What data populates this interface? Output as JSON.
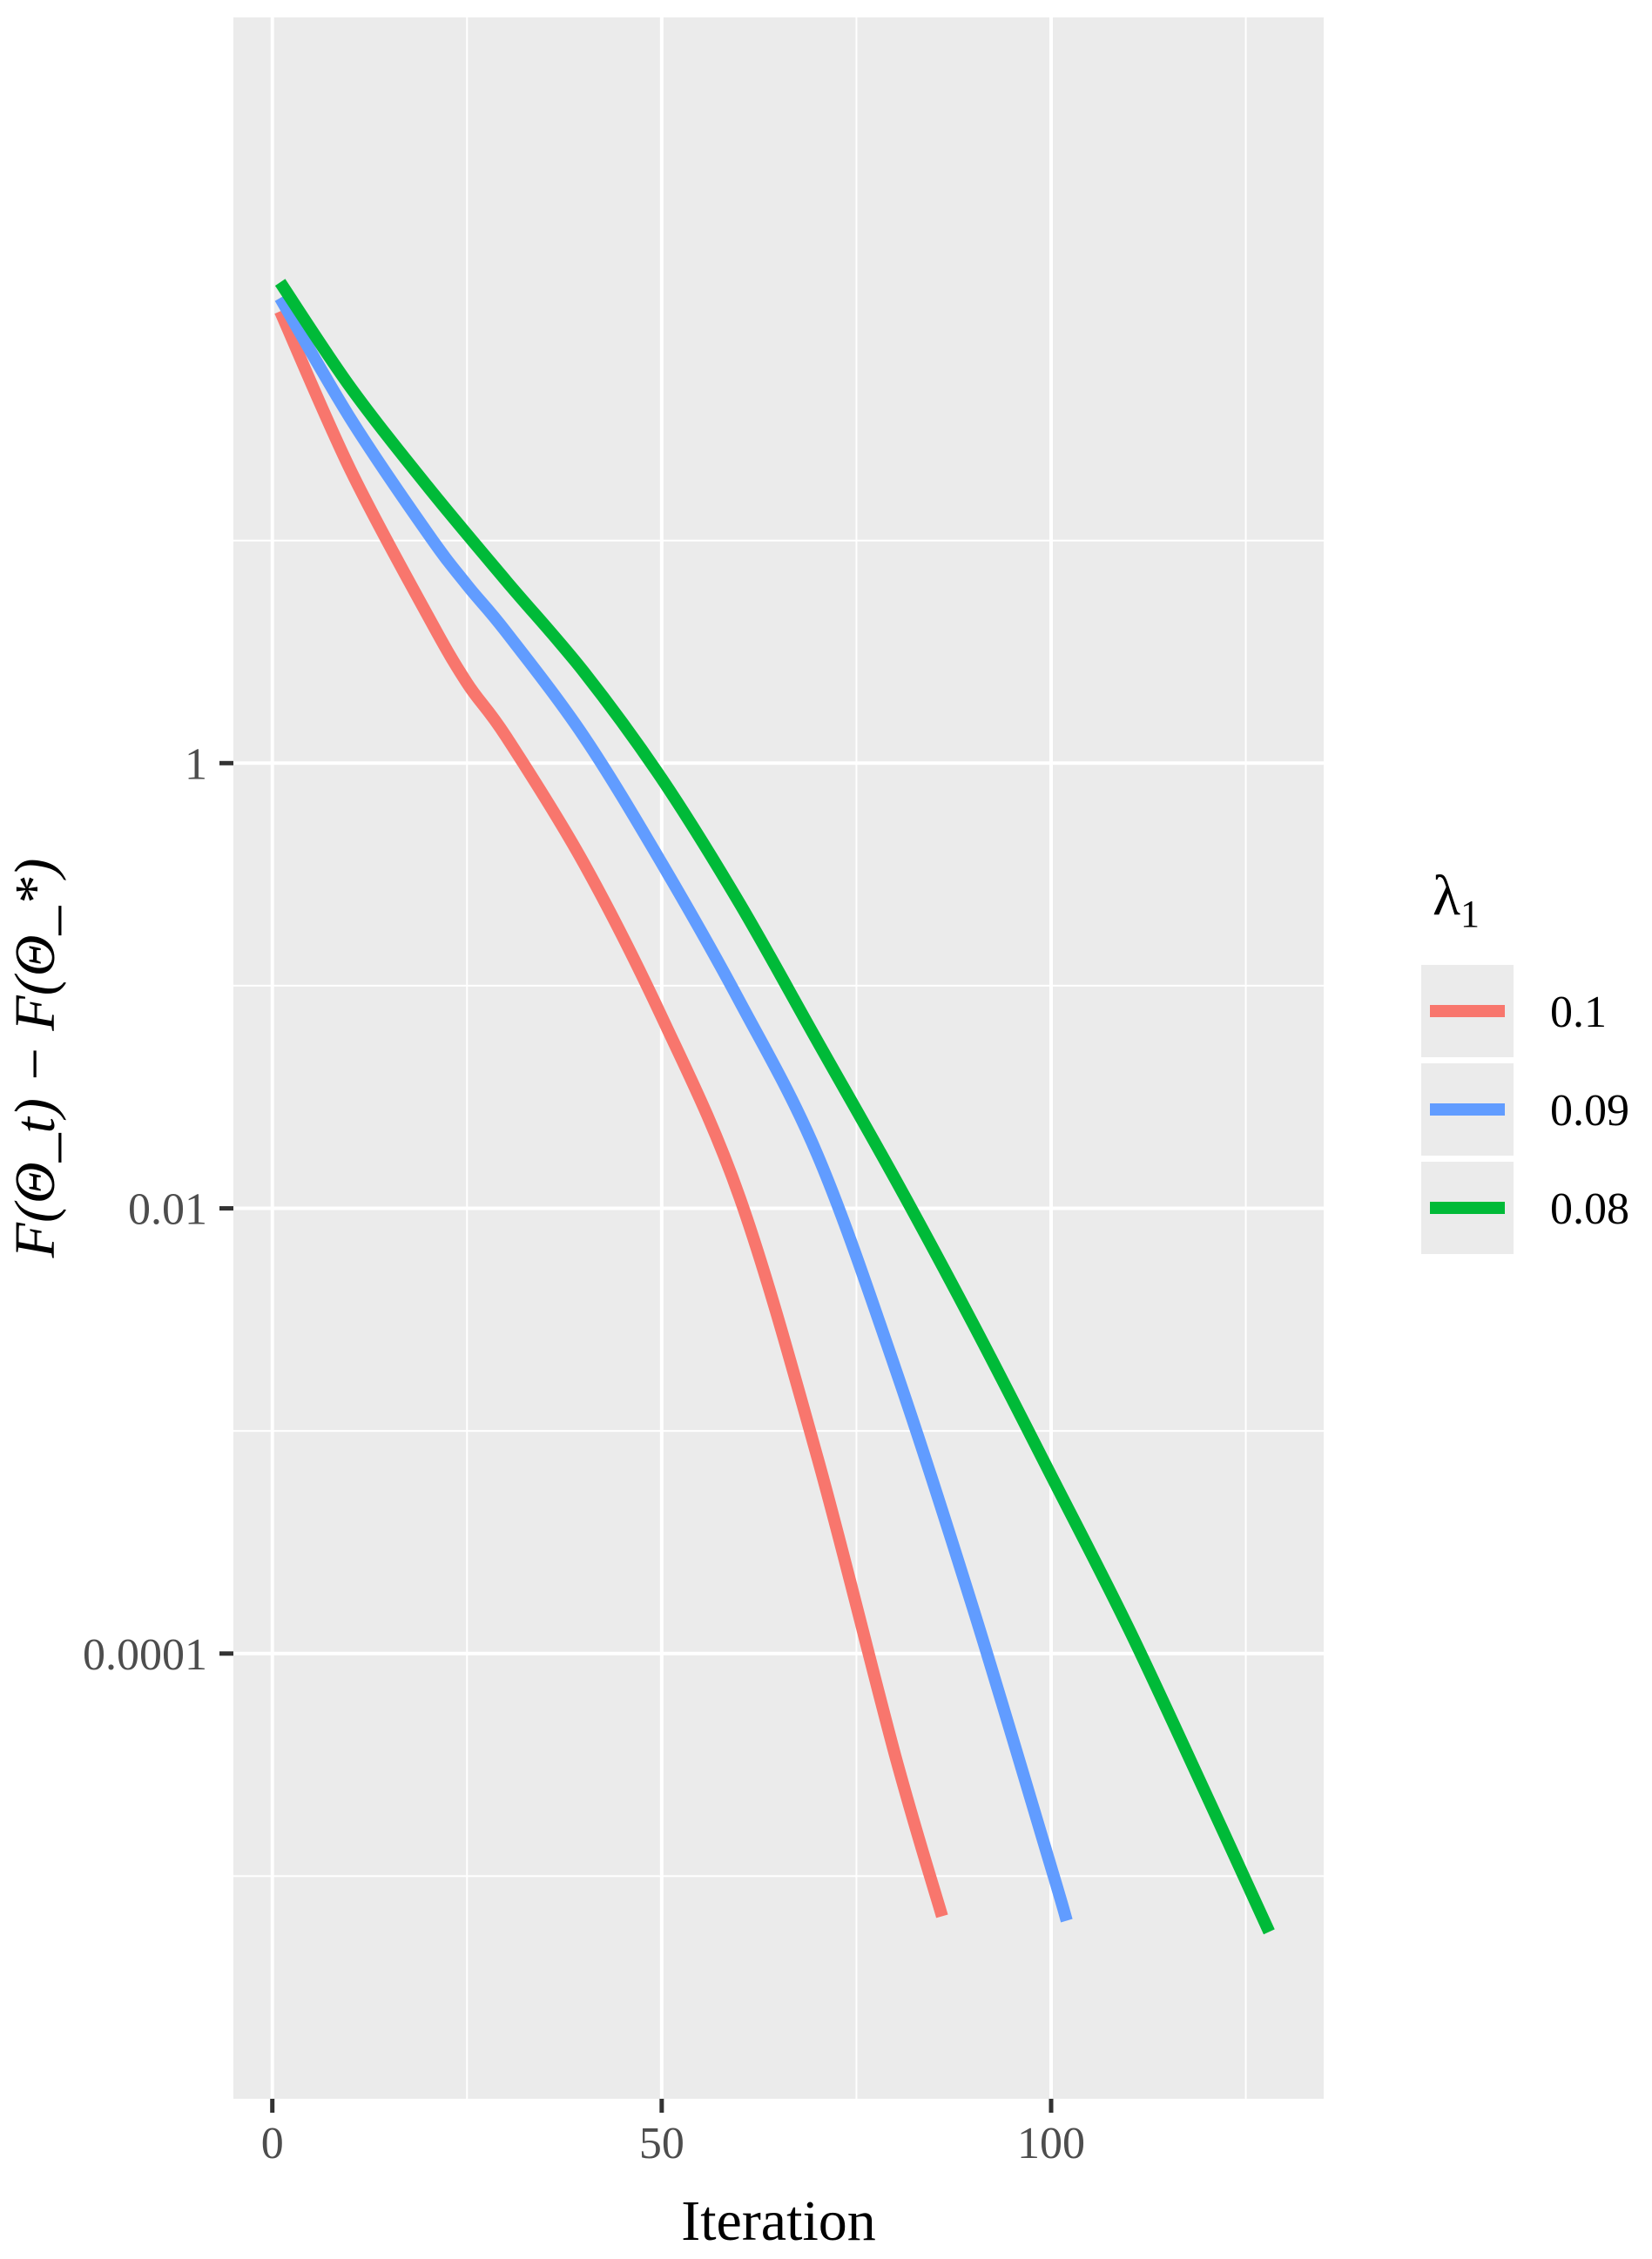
{
  "chart_data": {
    "type": "line",
    "title": "",
    "xlabel": "Iteration",
    "ylabel": "F(Θ_t) − F(Θ_*)",
    "y_scale": "log10",
    "xlim": [
      -5,
      135
    ],
    "ylim_log10": [
      -6,
      3.35
    ],
    "x_ticks": [
      0,
      50,
      100
    ],
    "x_tick_labels": [
      "0",
      "50",
      "100"
    ],
    "y_ticks_log10": [
      0,
      -2,
      -4
    ],
    "y_tick_labels": [
      "1",
      "0.01",
      "0.0001"
    ],
    "legend": {
      "title_main": "λ",
      "title_sub": "1",
      "position": "right"
    },
    "colors": {
      "panel": "#EBEBEB",
      "grid": "#FFFFFF",
      "tick": "#333333"
    },
    "series": [
      {
        "name": "0.1",
        "color": "#F8766D",
        "points": [
          [
            1,
            2.03
          ],
          [
            10,
            1.32
          ],
          [
            20,
            0.66
          ],
          [
            25,
            0.36
          ],
          [
            30,
            0.12
          ],
          [
            40,
            -0.45
          ],
          [
            50,
            -1.14
          ],
          [
            60,
            -1.95
          ],
          [
            70,
            -3.12
          ],
          [
            80,
            -4.46
          ],
          [
            86,
            -5.18
          ]
        ]
      },
      {
        "name": "0.09",
        "color": "#619CFF",
        "points": [
          [
            1,
            2.09
          ],
          [
            10,
            1.55
          ],
          [
            20,
            1.03
          ],
          [
            25,
            0.8
          ],
          [
            30,
            0.59
          ],
          [
            40,
            0.12
          ],
          [
            50,
            -0.45
          ],
          [
            60,
            -1.07
          ],
          [
            70,
            -1.76
          ],
          [
            80,
            -2.72
          ],
          [
            90,
            -3.8
          ],
          [
            100,
            -4.96
          ],
          [
            102,
            -5.2
          ]
        ]
      },
      {
        "name": "0.08",
        "color": "#00BA38",
        "points": [
          [
            1,
            2.16
          ],
          [
            10,
            1.69
          ],
          [
            20,
            1.24
          ],
          [
            30,
            0.82
          ],
          [
            40,
            0.41
          ],
          [
            50,
            -0.07
          ],
          [
            60,
            -0.63
          ],
          [
            70,
            -1.25
          ],
          [
            80,
            -1.87
          ],
          [
            90,
            -2.52
          ],
          [
            100,
            -3.2
          ],
          [
            110,
            -3.89
          ],
          [
            120,
            -4.64
          ],
          [
            128,
            -5.25
          ]
        ]
      }
    ]
  }
}
